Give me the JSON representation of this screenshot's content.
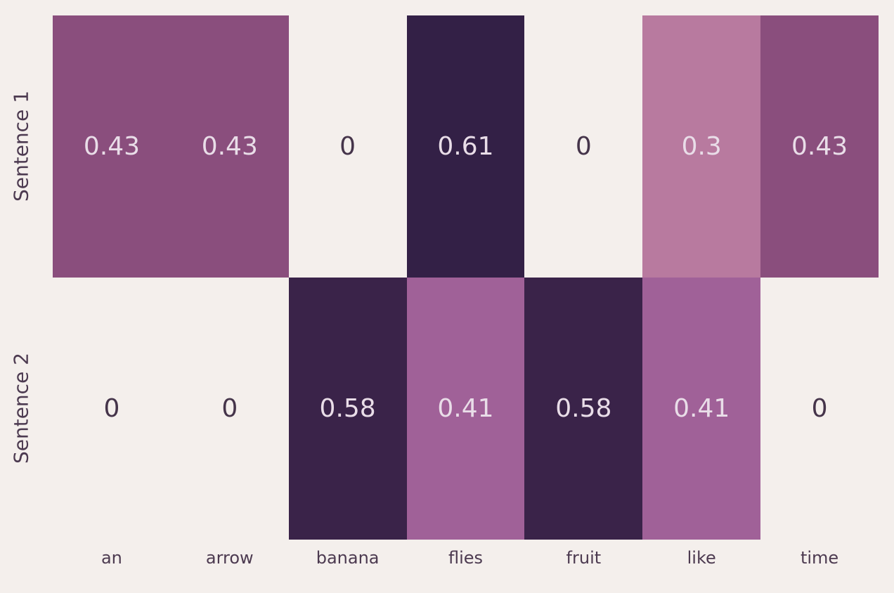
{
  "chart_data": {
    "type": "heatmap",
    "title": "",
    "rows": [
      "Sentence 1",
      "Sentence 2"
    ],
    "columns": [
      "an",
      "arrow",
      "banana",
      "flies",
      "fruit",
      "like",
      "time"
    ],
    "values": [
      [
        0.43,
        0.43,
        0,
        0.61,
        0,
        0.3,
        0.43
      ],
      [
        0,
        0,
        0.58,
        0.41,
        0.58,
        0.41,
        0
      ]
    ],
    "cell_labels": [
      [
        "0.43",
        "0.43",
        "0",
        "0.61",
        "0",
        "0.3",
        "0.43"
      ],
      [
        "0",
        "0",
        "0.58",
        "0.41",
        "0.58",
        "0.41",
        "0"
      ]
    ],
    "cell_colors": [
      [
        "#8a4e7d",
        "#8a4e7d",
        "none",
        "#332046",
        "none",
        "#b87a9f",
        "#8a4e7d"
      ],
      [
        "none",
        "none",
        "#3a2349",
        "#a06198",
        "#3a2349",
        "#a06198",
        "none"
      ]
    ],
    "colors": {
      "background": "#f4efec",
      "annot_light": "#e9dde8",
      "annot_dark": "#45344a",
      "axis_text": "#4c3a50"
    },
    "value_range": [
      0,
      0.61
    ],
    "legend": "none",
    "grid": "off",
    "colormap_direction": "higher value = darker purple, zero = background"
  }
}
